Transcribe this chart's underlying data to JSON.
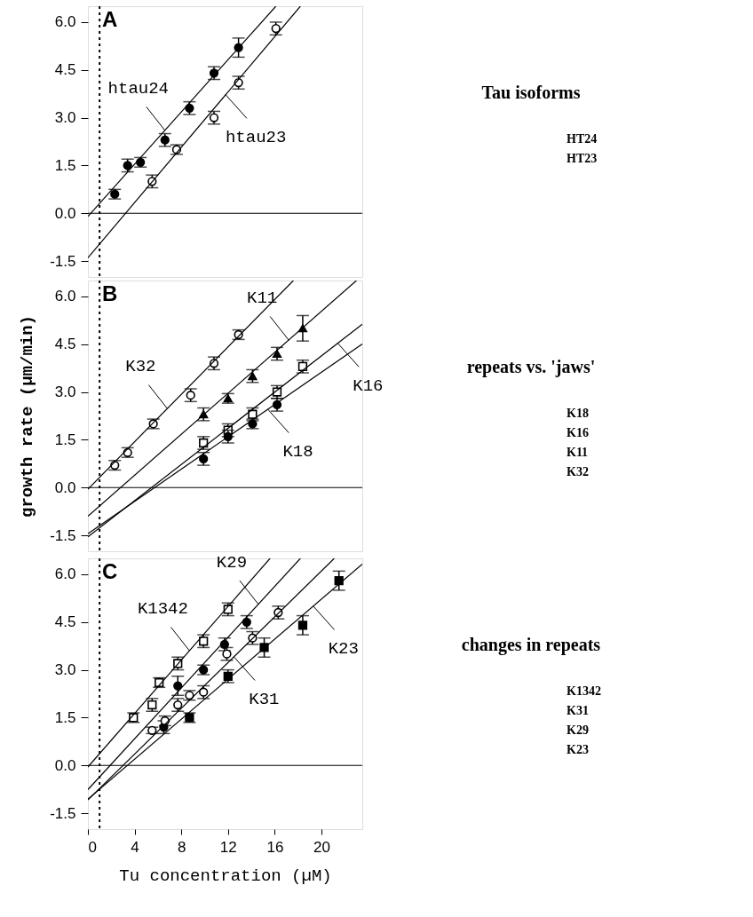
{
  "chart_data": [
    {
      "type": "scatter",
      "title": "A",
      "xlim": [
        0,
        23.5
      ],
      "ylim": [
        -2.0,
        6.5
      ],
      "yticks": [
        {
          "value": -1.5,
          "label": "-1.5"
        },
        {
          "value": 0,
          "label": "0.0"
        },
        {
          "value": 1.5,
          "label": "1.5"
        },
        {
          "value": 3,
          "label": "3.0"
        },
        {
          "value": 4.5,
          "label": "4.5"
        },
        {
          "value": 6,
          "label": "6.0"
        }
      ],
      "xticks": [
        0,
        4,
        8,
        12,
        16,
        20
      ],
      "tick_labels": "y",
      "grid": false,
      "legend": false,
      "series": [
        {
          "type": "scatter",
          "marker": "circle",
          "color": "#000000",
          "x": [
            2.3,
            3.4,
            4.5,
            6.6,
            8.7,
            10.8,
            12.9
          ],
          "values": [
            0.6,
            1.5,
            1.6,
            2.3,
            3.3,
            4.4,
            5.2
          ],
          "errors": [
            0.15,
            0.2,
            0.15,
            0.2,
            0.2,
            0.2,
            0.3
          ]
        },
        {
          "type": "scatter",
          "marker": "circle",
          "color": "#ffffff",
          "x": [
            5.5,
            7.6,
            10.8,
            12.9,
            16.1
          ],
          "values": [
            1.0,
            2.0,
            3.0,
            4.1,
            5.8
          ],
          "errors": [
            0.2,
            0.15,
            0.2,
            0.2,
            0.2
          ]
        },
        {
          "type": "line",
          "color": "#000000",
          "x": [
            0,
            16.1
          ],
          "values": [
            -0.1,
            6.5
          ]
        },
        {
          "type": "line",
          "color": "#000000",
          "x": [
            0,
            18.2
          ],
          "values": [
            -1.4,
            6.5
          ]
        }
      ],
      "ref_lines": [
        {
          "axis": "x",
          "value": 1,
          "line_style": "dotted"
        },
        {
          "axis": "y",
          "value": 0,
          "line_style": "solid"
        }
      ],
      "annotations": [
        {
          "text": "htau24",
          "x": 6.6,
          "y": 2.6
        },
        {
          "text": "htau23",
          "x": 11.8,
          "y": 3.72
        },
        "Tau isoforms",
        "HT24",
        "HT23"
      ]
    },
    {
      "type": "scatter",
      "title": "B",
      "ylabel": "growth rate (µm/min)",
      "xlim": [
        0,
        23.5
      ],
      "ylim": [
        -2.0,
        6.5
      ],
      "yticks": [
        {
          "value": -1.5,
          "label": "-1.5"
        },
        {
          "value": 0,
          "label": "0.0"
        },
        {
          "value": 1.5,
          "label": "1.5"
        },
        {
          "value": 3,
          "label": "3.0"
        },
        {
          "value": 4.5,
          "label": "4.5"
        },
        {
          "value": 6,
          "label": "6.0"
        }
      ],
      "xticks": [
        0,
        4,
        8,
        12,
        16,
        20
      ],
      "tick_labels": "y",
      "grid": false,
      "legend": false,
      "series": [
        {
          "type": "scatter",
          "marker": "circle",
          "color": "#ffffff",
          "x": [
            2.3,
            3.4,
            5.6,
            8.8,
            10.8,
            12.9
          ],
          "values": [
            0.7,
            1.1,
            2.0,
            2.9,
            3.9,
            4.8
          ],
          "errors": [
            0.15,
            0.15,
            0.15,
            0.2,
            0.2,
            0.15
          ]
        },
        {
          "type": "scatter",
          "marker": "triangle",
          "color": "#000000",
          "x": [
            9.9,
            12.0,
            14.1,
            16.2,
            18.4
          ],
          "values": [
            2.3,
            2.8,
            3.5,
            4.2,
            5.0
          ],
          "errors": [
            0.2,
            0.15,
            0.2,
            0.2,
            0.4
          ]
        },
        {
          "type": "scatter",
          "marker": "square",
          "color": "#ffffff",
          "x": [
            9.9,
            12.0,
            14.1,
            16.2,
            18.4
          ],
          "values": [
            1.4,
            1.8,
            2.3,
            3.0,
            3.8
          ],
          "errors": [
            0.2,
            0.2,
            0.2,
            0.2,
            0.2
          ]
        },
        {
          "type": "scatter",
          "marker": "circle",
          "color": "#000000",
          "x": [
            9.9,
            12.0,
            14.1,
            16.2
          ],
          "values": [
            0.9,
            1.6,
            2.0,
            2.6
          ],
          "errors": [
            0.2,
            0.2,
            0.15,
            0.2
          ]
        },
        {
          "type": "line",
          "color": "#000000",
          "x": [
            0,
            17.6
          ],
          "values": [
            -0.05,
            6.5
          ]
        },
        {
          "type": "line",
          "color": "#000000",
          "x": [
            0,
            23.0
          ],
          "values": [
            -0.9,
            6.5
          ]
        },
        {
          "type": "line",
          "color": "#000000",
          "x": [
            0,
            23.5
          ],
          "values": [
            -1.55,
            5.13
          ]
        },
        {
          "type": "line",
          "color": "#000000",
          "x": [
            0,
            23.5
          ],
          "values": [
            -1.45,
            4.51
          ]
        }
      ],
      "ref_lines": [
        {
          "axis": "x",
          "value": 1,
          "line_style": "dotted"
        },
        {
          "axis": "y",
          "value": 0,
          "line_style": "solid"
        }
      ],
      "annotations": [
        {
          "text": "K11",
          "x": 17.2,
          "y": 4.63
        },
        {
          "text": "K32",
          "x": 6.8,
          "y": 2.48
        },
        {
          "text": "K16",
          "x": 21.4,
          "y": 4.53
        },
        {
          "text": "K18",
          "x": 15.4,
          "y": 2.46
        },
        "repeats vs. 'jaws'",
        "K18",
        "K16",
        "K11",
        "K32"
      ]
    },
    {
      "type": "scatter",
      "title": "C",
      "xlabel": "Tu concentration (µM)",
      "xlim": [
        0,
        23.5
      ],
      "ylim": [
        -2.0,
        6.5
      ],
      "yticks": [
        {
          "value": -1.5,
          "label": "-1.5"
        },
        {
          "value": 0,
          "label": "0.0"
        },
        {
          "value": 1.5,
          "label": "1.5"
        },
        {
          "value": 3,
          "label": "3.0"
        },
        {
          "value": 4.5,
          "label": "4.5"
        },
        {
          "value": 6,
          "label": "6.0"
        }
      ],
      "xticks": [
        0,
        4,
        8,
        12,
        16,
        20
      ],
      "grid": false,
      "legend": false,
      "series": [
        {
          "type": "scatter",
          "marker": "square",
          "color": "#ffffff",
          "x": [
            3.9,
            5.5,
            6.1,
            7.7,
            9.9,
            12.0
          ],
          "values": [
            1.5,
            1.9,
            2.6,
            3.2,
            3.9,
            4.9
          ],
          "errors": [
            0.15,
            0.2,
            0.15,
            0.2,
            0.2,
            0.2
          ]
        },
        {
          "type": "scatter",
          "marker": "circle",
          "color": "#000000",
          "x": [
            6.5,
            7.7,
            9.9,
            11.7,
            13.6
          ],
          "values": [
            1.2,
            2.5,
            3.0,
            3.8,
            4.5
          ],
          "errors": [
            0.2,
            0.3,
            0.15,
            0.2,
            0.2
          ]
        },
        {
          "type": "scatter",
          "marker": "circle",
          "color": "#ffffff",
          "x": [
            5.5,
            6.6,
            7.7,
            8.7,
            9.9,
            11.9,
            14.1,
            16.3
          ],
          "values": [
            1.1,
            1.4,
            1.9,
            2.2,
            2.3,
            3.5,
            4.0,
            4.8
          ],
          "errors": [
            0.1,
            0.15,
            0.2,
            0.15,
            0.2,
            0.2,
            0.2,
            0.2
          ]
        },
        {
          "type": "scatter",
          "marker": "square",
          "color": "#000000",
          "x": [
            8.7,
            12.0,
            15.1,
            18.4,
            21.5
          ],
          "values": [
            1.5,
            2.8,
            3.7,
            4.4,
            5.8
          ],
          "errors": [
            0.15,
            0.2,
            0.3,
            0.3,
            0.3
          ]
        },
        {
          "type": "line",
          "color": "#000000",
          "x": [
            0,
            15.6
          ],
          "values": [
            -0.05,
            6.5
          ]
        },
        {
          "type": "line",
          "color": "#000000",
          "x": [
            0,
            18.2
          ],
          "values": [
            -0.76,
            6.5
          ]
        },
        {
          "type": "line",
          "color": "#000000",
          "x": [
            0,
            21.1
          ],
          "values": [
            -1.08,
            6.5
          ]
        },
        {
          "type": "line",
          "color": "#000000",
          "x": [
            0,
            23.5
          ],
          "values": [
            -1.06,
            6.32
          ]
        }
      ],
      "ref_lines": [
        {
          "axis": "x",
          "value": 1,
          "line_style": "dotted"
        },
        {
          "axis": "y",
          "value": 0,
          "line_style": "solid"
        }
      ],
      "annotations": [
        {
          "text": "K29",
          "x": 14.6,
          "y": 5.06
        },
        {
          "text": "K1342",
          "x": 8.7,
          "y": 3.6
        },
        {
          "text": "K31",
          "x": 12.5,
          "y": 3.41
        },
        {
          "text": "K23",
          "x": 19.3,
          "y": 5.0
        },
        "changes in repeats",
        "K1342",
        "K31",
        "K29",
        "K23"
      ]
    }
  ]
}
